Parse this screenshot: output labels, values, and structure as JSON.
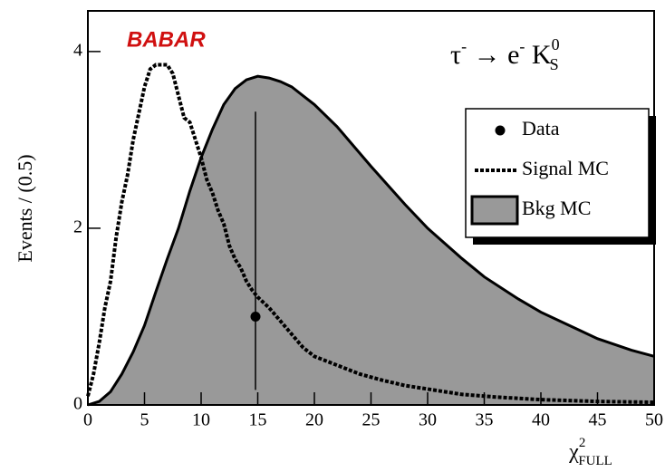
{
  "chart_data": {
    "type": "line",
    "logo": "BABAR",
    "annotation": [
      "τ",
      "-",
      " → e",
      "-",
      " K",
      "0",
      "S"
    ],
    "y_label": "Events / (0.5)",
    "x_label": {
      "symbol": "χ",
      "superscript": "2",
      "subscript": "FULL"
    },
    "xlim": [
      0,
      50
    ],
    "ylim": [
      0,
      4.46
    ],
    "xticks": [
      0,
      5,
      10,
      15,
      20,
      25,
      30,
      35,
      40,
      45,
      50
    ],
    "yticks": [
      0,
      2,
      4
    ],
    "series": [
      {
        "name": "Data",
        "style": "points",
        "color": "#000000",
        "x": [
          14.8
        ],
        "values": [
          1.0
        ],
        "error_minus": [
          0.83
        ],
        "error_plus": [
          2.32
        ]
      },
      {
        "name": "Signal MC",
        "style": "dotted",
        "color": "#000000",
        "x": [
          0,
          0.5,
          1,
          1.5,
          2,
          2.5,
          3,
          3.5,
          4,
          4.5,
          5,
          5.5,
          6,
          6.5,
          7,
          7.5,
          8,
          8.5,
          9,
          9.5,
          10,
          10.5,
          11,
          11.5,
          12,
          12.5,
          13,
          13.5,
          14,
          14.5,
          15,
          16,
          17,
          18,
          19,
          20,
          22,
          24,
          26,
          28,
          30,
          33,
          36,
          40,
          45,
          50
        ],
        "values": [
          0.1,
          0.35,
          0.7,
          1.1,
          1.4,
          1.9,
          2.3,
          2.6,
          3.0,
          3.3,
          3.6,
          3.8,
          3.85,
          3.85,
          3.85,
          3.75,
          3.5,
          3.25,
          3.2,
          3.0,
          2.8,
          2.55,
          2.4,
          2.2,
          2.05,
          1.8,
          1.65,
          1.55,
          1.4,
          1.3,
          1.22,
          1.1,
          0.95,
          0.8,
          0.65,
          0.55,
          0.45,
          0.35,
          0.28,
          0.22,
          0.18,
          0.12,
          0.09,
          0.06,
          0.04,
          0.03
        ]
      },
      {
        "name": "Bkg MC",
        "style": "area",
        "color": "#999999",
        "x": [
          0,
          1,
          2,
          3,
          4,
          5,
          6,
          7,
          8,
          9,
          10,
          11,
          12,
          13,
          14,
          15,
          16,
          17,
          18,
          19,
          20,
          22,
          25,
          28,
          30,
          33,
          35,
          38,
          40,
          43,
          45,
          48,
          50
        ],
        "values": [
          0,
          0.04,
          0.15,
          0.35,
          0.6,
          0.9,
          1.28,
          1.65,
          2.0,
          2.42,
          2.8,
          3.12,
          3.4,
          3.58,
          3.68,
          3.72,
          3.7,
          3.66,
          3.6,
          3.5,
          3.4,
          3.15,
          2.7,
          2.27,
          2.0,
          1.66,
          1.45,
          1.2,
          1.05,
          0.87,
          0.75,
          0.62,
          0.55
        ]
      }
    ]
  }
}
